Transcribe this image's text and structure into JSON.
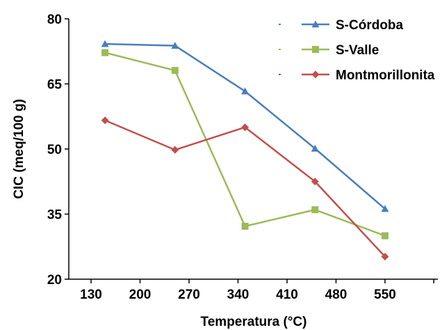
{
  "chart_data": {
    "type": "line",
    "title": "",
    "xlabel": "Temperatura (°C)",
    "ylabel": "CIC (meq/100 g)",
    "x_ticks": [
      130,
      200,
      270,
      340,
      410,
      480,
      550
    ],
    "y_ticks": [
      20,
      35,
      50,
      65,
      80
    ],
    "xlim": [
      130,
      610
    ],
    "ylim": [
      20,
      80
    ],
    "grid": false,
    "legend_position": "top-right",
    "series": [
      {
        "name": "S-Córdoba",
        "color": "#4a7ebb",
        "marker": "triangle",
        "x": [
          150,
          250,
          350,
          450,
          550
        ],
        "y": [
          74.2,
          73.8,
          63.3,
          50.1,
          36.2
        ]
      },
      {
        "name": "S-Valle",
        "color": "#9bbb59",
        "marker": "square",
        "x": [
          150,
          250,
          350,
          450,
          550
        ],
        "y": [
          72.2,
          68.1,
          32.2,
          36.0,
          30.0
        ]
      },
      {
        "name": "Montmorillonita",
        "color": "#c0504d",
        "marker": "diamond",
        "x": [
          150,
          250,
          350,
          450,
          550
        ],
        "y": [
          56.6,
          49.8,
          55.0,
          42.5,
          25.2
        ]
      }
    ]
  }
}
